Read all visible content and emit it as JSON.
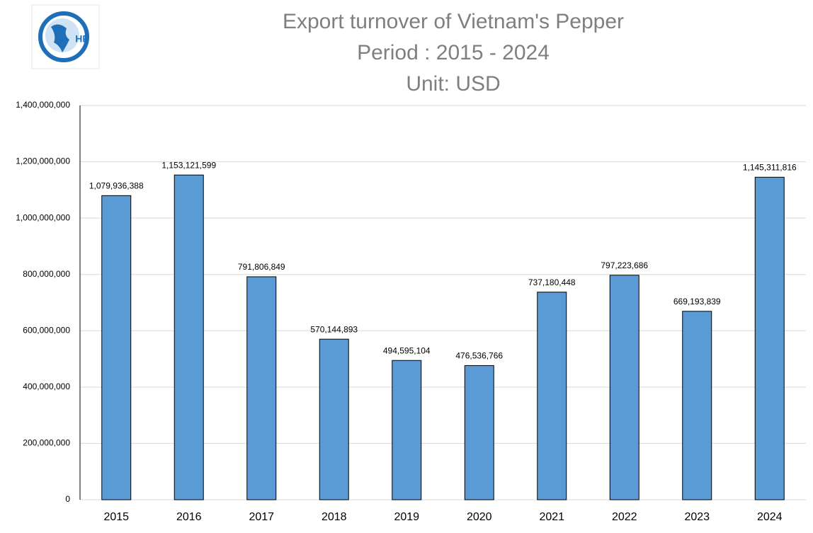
{
  "logo_text": "HP",
  "chart_data": {
    "type": "bar",
    "title": "Export turnover of Vietnam's Pepper",
    "subtitle": [
      "Period : 2015 - 2024",
      "Unit: USD"
    ],
    "categories": [
      "2015",
      "2016",
      "2017",
      "2018",
      "2019",
      "2020",
      "2021",
      "2022",
      "2023",
      "2024"
    ],
    "values": [
      1079936388,
      1153121599,
      791806849,
      570144893,
      494595104,
      476536766,
      737180448,
      797223686,
      669193839,
      1145311816
    ],
    "value_labels": [
      "1,079,936,388",
      "1,153,121,599",
      "791,806,849",
      "570,144,893",
      "494,595,104",
      "476,536,766",
      "737,180,448",
      "797,223,686",
      "669,193,839",
      "1,145,311,816"
    ],
    "color": "#5b9bd5",
    "ylim": [
      0,
      1400000000
    ],
    "yticks": [
      0,
      {
        "value": 200000000,
        "label": "200,000,000"
      },
      {
        "value": 400000000,
        "label": "400,000,000"
      },
      {
        "value": 600000000,
        "label": "600,000,000"
      },
      {
        "value": 800000000,
        "label": "800,000,000"
      },
      {
        "value": 1000000000,
        "label": "1,000,000,000"
      },
      {
        "value": 1200000000,
        "label": "1,200,000,000"
      },
      {
        "value": 1400000000,
        "label": "1,400,000,000"
      }
    ],
    "grid": true
  }
}
